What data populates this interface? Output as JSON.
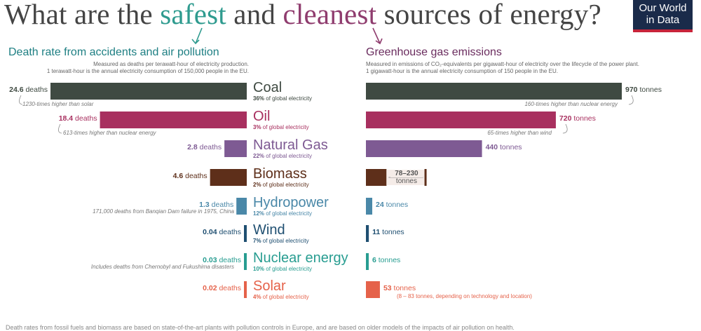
{
  "header": {
    "title_parts": [
      "What are the ",
      "safest",
      " and ",
      "cleanest",
      " sources of energy?"
    ],
    "logo_lines": [
      "Our World",
      "in Data"
    ]
  },
  "left_panel": {
    "title": "Death rate from accidents and air pollution",
    "subtitle_lines": [
      "Measured as deaths per terawatt-hour of electricity production.",
      "1 terawatt-hour is the annual electricity consumption of 150,000 people in the EU."
    ]
  },
  "right_panel": {
    "title": "Greenhouse gas emissions",
    "subtitle_lines": [
      "Measured in emissions of CO₂-equivalents per gigawatt-hour of electricity over the lifecycle of the power plant.",
      "1 gigawatt-hour is the annual electricity consumption of 150 people in the EU."
    ]
  },
  "footer_text": "Death rates from fossil fuels and biomass are based on state-of-the-art plants with pollution controls in Europe, and are based on older models of the impacts of air pollution on health.",
  "colors": {
    "coal": "#3f4a42",
    "oil": "#a8305f",
    "gas": "#7e5a93",
    "biomass": "#5e2f1a",
    "hydro": "#4a88a8",
    "wind": "#1f4f71",
    "nuclear": "#289d91",
    "solar": "#e5624a"
  },
  "chart_data": [
    {
      "type": "bar",
      "title": "Death rate from accidents and air pollution",
      "unit": "deaths",
      "categories": [
        "Coal",
        "Oil",
        "Natural Gas",
        "Biomass",
        "Hydropower",
        "Wind",
        "Nuclear energy",
        "Solar"
      ],
      "values": [
        24.6,
        18.4,
        2.8,
        4.6,
        1.3,
        0.04,
        0.03,
        0.02
      ],
      "value_labels": [
        "24.6",
        "18.4",
        "2.8",
        "4.6",
        "1.3",
        "0.04",
        "0.03",
        "0.02"
      ],
      "notes": [
        "1230-times higher than solar",
        "613-times higher than nuclear energy",
        "",
        "",
        "171,000 deaths from Banqian Dam failure in 1975, China",
        "",
        "Includes deaths from Chernobyl and Fukushima disasters",
        ""
      ]
    },
    {
      "type": "bar",
      "title": "Greenhouse gas emissions",
      "unit": "tonnes",
      "categories": [
        "Coal",
        "Oil",
        "Natural Gas",
        "Biomass",
        "Hydropower",
        "Wind",
        "Nuclear energy",
        "Solar"
      ],
      "values": [
        970,
        720,
        440,
        154,
        24,
        11,
        6,
        53
      ],
      "value_labels": [
        "970",
        "720",
        "440",
        "78–230",
        "24",
        "11",
        "6",
        "53"
      ],
      "biomass_range": [
        78,
        230
      ],
      "notes": [
        "160-times higher than nuclear energy",
        "65-times higher than wind",
        "",
        "",
        "",
        "",
        "",
        "(8 – 83 tonnes, depending on technology and location)"
      ]
    }
  ],
  "sources": [
    {
      "name": "Coal",
      "share": "36%",
      "share_text": " of global electricity"
    },
    {
      "name": "Oil",
      "share": "3%",
      "share_text": " of global electricity"
    },
    {
      "name": "Natural Gas",
      "share": "22%",
      "share_text": " of global electricity"
    },
    {
      "name": "Biomass",
      "share": "2%",
      "share_text": " of global electricity"
    },
    {
      "name": "Hydropower",
      "share": "12%",
      "share_text": " of global electricity"
    },
    {
      "name": "Wind",
      "share": "7%",
      "share_text": " of global electricity"
    },
    {
      "name": "Nuclear energy",
      "share": "10%",
      "share_text": " of global electricity"
    },
    {
      "name": "Solar",
      "share": "4%",
      "share_text": " of global electricity"
    }
  ]
}
